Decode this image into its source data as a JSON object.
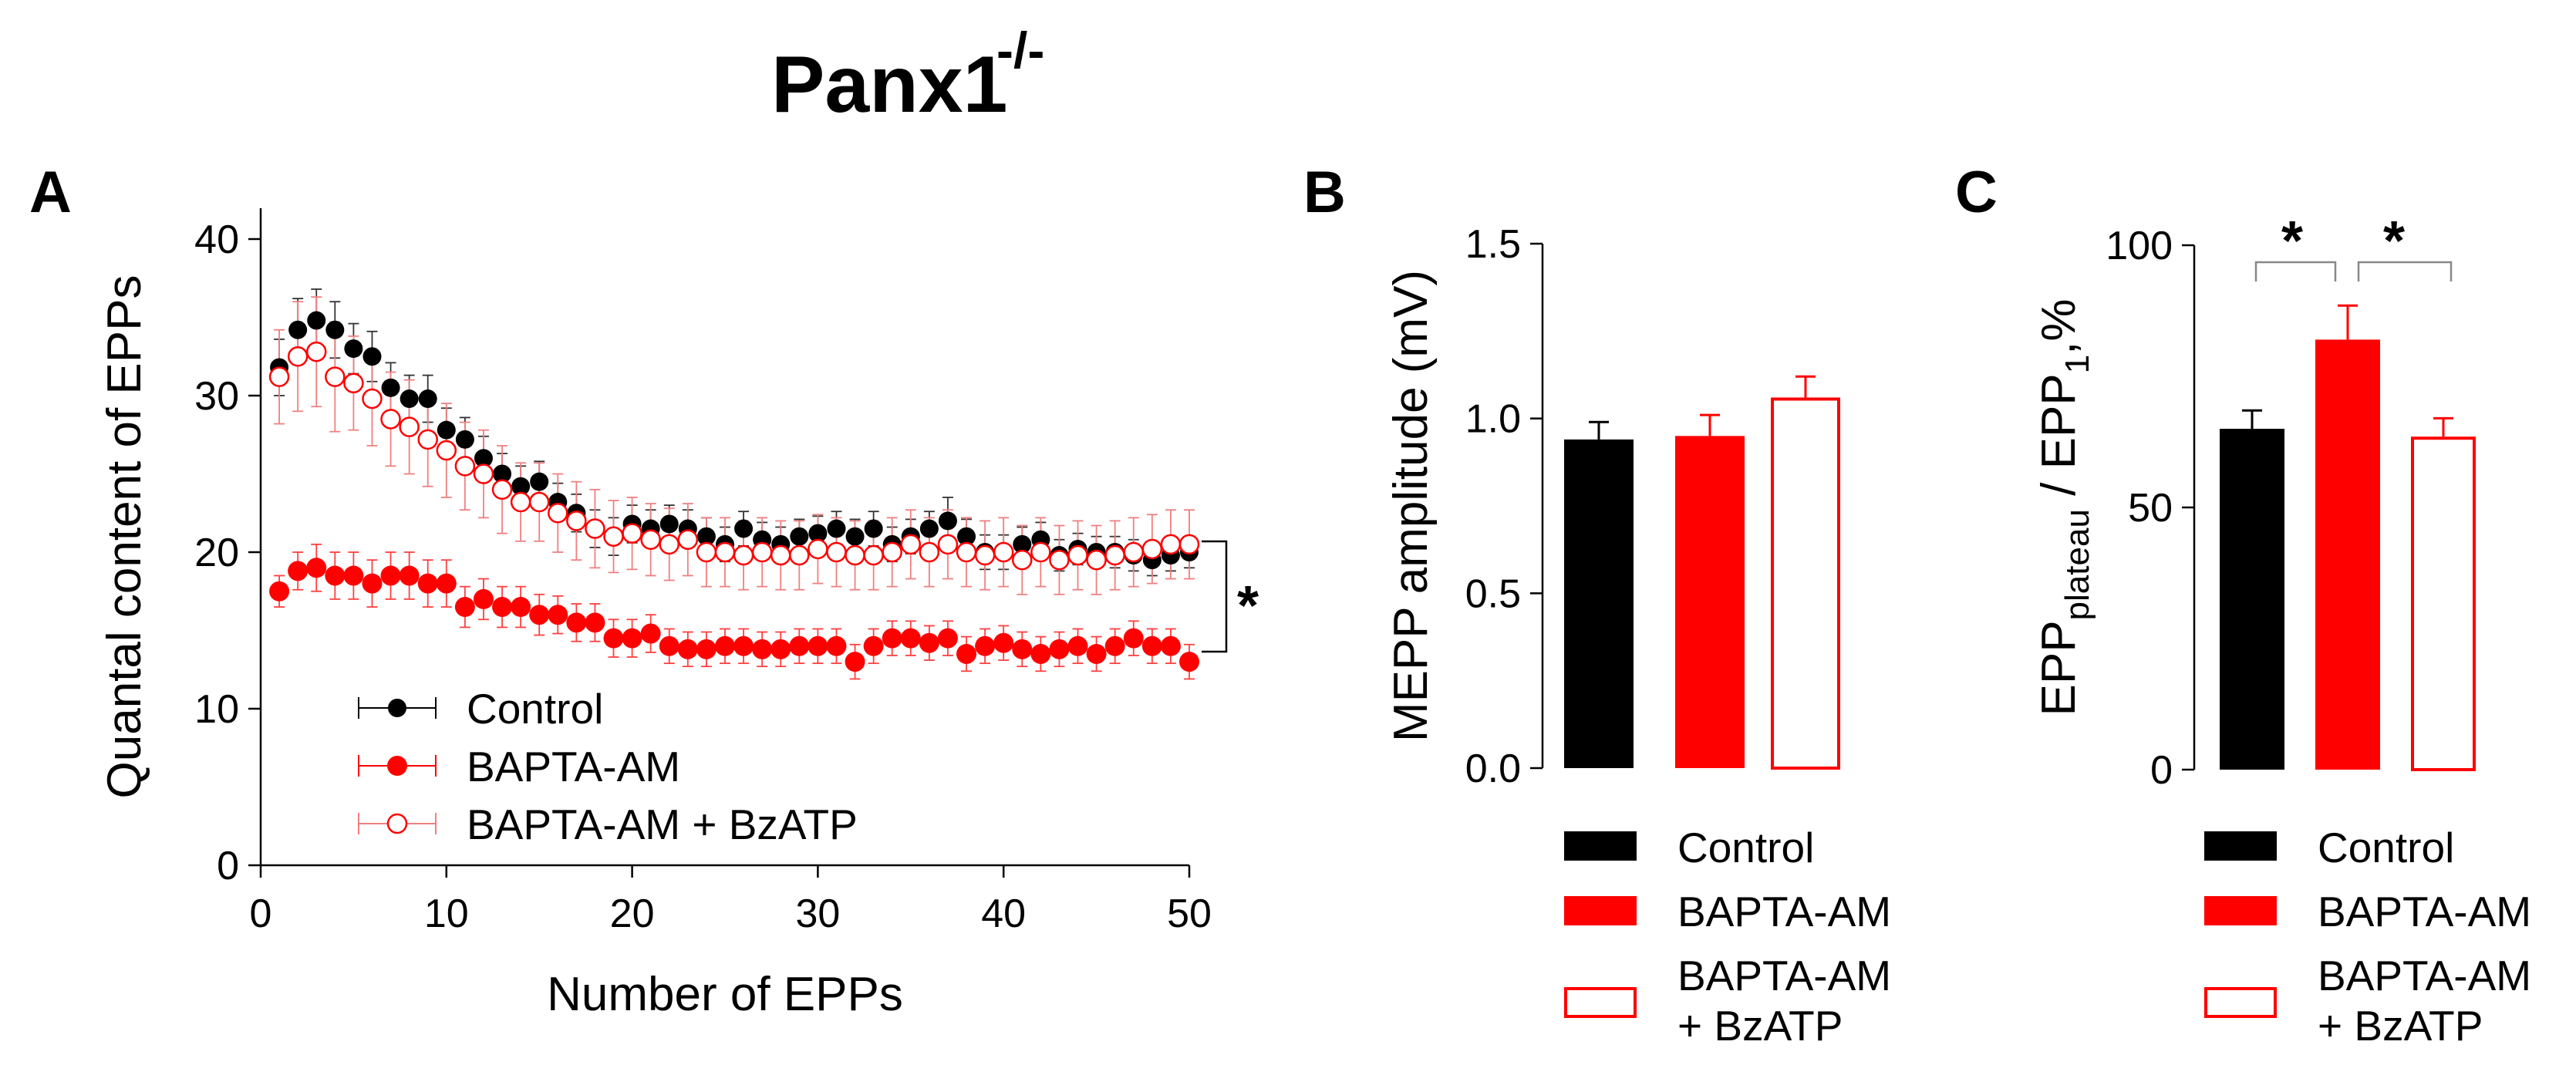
{
  "figure_title": "Panx1",
  "figure_title_superscript": "-/-",
  "colors": {
    "Control": "#000000",
    "BAPTA-AM": "#ff0000",
    "BAPTA-AM + BzATP": "#ff0000",
    "error_bar_open": "#f08080"
  },
  "chart_data": [
    {
      "panel": "A",
      "type": "line",
      "xlabel": "Number of EPPs",
      "ylabel": "Quantal content of EPPs",
      "xlim": [
        0,
        50
      ],
      "ylim": [
        0,
        40
      ],
      "xticks": [
        "0",
        "10",
        "20",
        "30",
        "40",
        "50"
      ],
      "yticks": [
        "0",
        "10",
        "20",
        "30",
        "40"
      ],
      "significance": "*",
      "x": [
        1,
        2,
        3,
        4,
        5,
        6,
        7,
        8,
        9,
        10,
        11,
        12,
        13,
        14,
        15,
        16,
        17,
        18,
        19,
        20,
        21,
        22,
        23,
        24,
        25,
        26,
        27,
        28,
        29,
        30,
        31,
        32,
        33,
        34,
        35,
        36,
        37,
        38,
        39,
        40,
        41,
        42,
        43,
        44,
        45,
        46,
        47,
        48,
        49,
        50
      ],
      "series": [
        {
          "name": "Control",
          "marker": "filled-black",
          "values": [
            31.8,
            34.2,
            34.8,
            34.2,
            33.0,
            32.5,
            30.5,
            29.8,
            29.8,
            27.8,
            27.2,
            26.0,
            25.0,
            24.2,
            24.5,
            23.2,
            22.5,
            21.5,
            21.0,
            21.8,
            21.5,
            21.8,
            21.5,
            21.0,
            20.5,
            21.5,
            20.8,
            20.5,
            21.0,
            21.2,
            21.5,
            21.0,
            21.5,
            20.5,
            21.0,
            21.5,
            22.0,
            21.0,
            20.0,
            20.0,
            20.5,
            20.8,
            19.8,
            20.2,
            20.0,
            20.0,
            19.8,
            19.5,
            19.8,
            20.0
          ],
          "errors": [
            1.8,
            2.0,
            2.0,
            1.8,
            1.6,
            1.6,
            1.6,
            1.5,
            1.5,
            1.4,
            1.4,
            1.4,
            1.3,
            1.3,
            1.3,
            1.2,
            1.2,
            1.2,
            1.2,
            1.2,
            1.2,
            1.2,
            1.2,
            1.2,
            1.1,
            1.1,
            1.1,
            1.1,
            1.1,
            1.1,
            1.1,
            1.1,
            1.1,
            1.1,
            1.1,
            1.1,
            1.5,
            1.1,
            1.1,
            1.1,
            1.1,
            1.1,
            1.0,
            1.0,
            1.0,
            1.0,
            1.0,
            1.0,
            1.0,
            1.0
          ]
        },
        {
          "name": "BAPTA-AM",
          "marker": "filled-red",
          "values": [
            17.5,
            18.8,
            19.0,
            18.5,
            18.5,
            18.0,
            18.5,
            18.5,
            18.0,
            18.0,
            16.5,
            17.0,
            16.5,
            16.5,
            16.0,
            16.0,
            15.5,
            15.5,
            14.5,
            14.5,
            14.8,
            14.0,
            13.8,
            13.8,
            14.0,
            14.0,
            13.8,
            13.8,
            14.0,
            14.0,
            14.0,
            13.0,
            14.0,
            14.5,
            14.5,
            14.2,
            14.5,
            13.5,
            14.0,
            14.2,
            13.8,
            13.5,
            13.8,
            14.0,
            13.5,
            14.0,
            14.5,
            14.0,
            14.0,
            13.0
          ],
          "errors": [
            1.0,
            1.2,
            1.5,
            1.5,
            1.5,
            1.5,
            1.5,
            1.5,
            1.5,
            1.5,
            1.3,
            1.3,
            1.3,
            1.3,
            1.3,
            1.2,
            1.2,
            1.2,
            1.2,
            1.2,
            1.2,
            1.1,
            1.1,
            1.1,
            1.1,
            1.1,
            1.1,
            1.1,
            1.1,
            1.1,
            1.1,
            1.1,
            1.1,
            1.1,
            1.1,
            1.1,
            1.1,
            1.1,
            1.1,
            1.1,
            1.1,
            1.1,
            1.1,
            1.1,
            1.1,
            1.1,
            1.1,
            1.1,
            1.1,
            1.1
          ]
        },
        {
          "name": "BAPTA-AM + BzATP",
          "marker": "open-red",
          "values": [
            31.2,
            32.5,
            32.8,
            31.2,
            30.8,
            29.8,
            28.5,
            28.0,
            27.2,
            26.5,
            25.5,
            25.0,
            24.0,
            23.2,
            23.2,
            22.5,
            22.0,
            21.5,
            21.0,
            21.2,
            20.8,
            20.5,
            20.8,
            20.0,
            20.0,
            19.8,
            20.0,
            19.8,
            19.8,
            20.2,
            20.0,
            19.8,
            19.8,
            20.0,
            20.5,
            20.0,
            20.5,
            20.0,
            19.8,
            20.0,
            19.5,
            20.0,
            19.5,
            19.8,
            19.5,
            19.8,
            20.0,
            20.2,
            20.5,
            20.5
          ],
          "errors": [
            3.0,
            3.5,
            3.5,
            3.5,
            3.0,
            3.0,
            3.0,
            3.0,
            3.0,
            3.0,
            2.8,
            2.8,
            2.8,
            2.5,
            2.5,
            2.5,
            2.5,
            2.5,
            2.3,
            2.3,
            2.3,
            2.3,
            2.3,
            2.2,
            2.2,
            2.2,
            2.2,
            2.2,
            2.2,
            2.2,
            2.2,
            2.2,
            2.2,
            2.2,
            2.2,
            2.2,
            2.2,
            2.2,
            2.2,
            2.2,
            2.2,
            2.2,
            2.2,
            2.2,
            2.2,
            2.2,
            2.2,
            2.2,
            2.2,
            2.2
          ]
        }
      ]
    },
    {
      "panel": "B",
      "type": "bar",
      "ylabel": "MEPP amplitude (mV)",
      "ylim": [
        0,
        1.5
      ],
      "yticks": [
        "0.0",
        "0.5",
        "1.0",
        "1.5"
      ],
      "categories": [
        "Control",
        "BAPTA-AM",
        "BAPTA-AM + BzATP"
      ],
      "values": [
        0.94,
        0.95,
        1.06
      ],
      "errors": [
        0.05,
        0.06,
        0.06
      ],
      "legend": [
        "Control",
        "BAPTA-AM",
        "BAPTA-AM",
        "+ BzATP"
      ]
    },
    {
      "panel": "C",
      "type": "bar",
      "ylabel_main": "EPP",
      "ylabel_sub1": "plateau",
      "ylabel_mid": " / EPP",
      "ylabel_sub2": "1",
      "ylabel_end": ",%",
      "ylim": [
        0,
        100
      ],
      "yticks": [
        "0",
        "50",
        "100"
      ],
      "categories": [
        "Control",
        "BAPTA-AM",
        "BAPTA-AM + BzATP"
      ],
      "values": [
        65,
        82,
        63.5
      ],
      "errors": [
        3.5,
        6.5,
        3.5
      ],
      "significance": [
        "*",
        "*"
      ],
      "legend": [
        "Control",
        "BAPTA-AM",
        "BAPTA-AM",
        "+ BzATP"
      ]
    }
  ]
}
